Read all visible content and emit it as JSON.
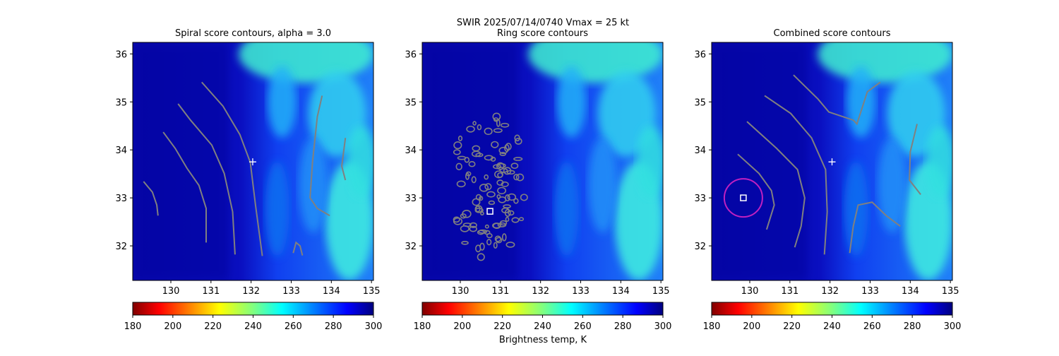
{
  "figure": {
    "suptitle_line1": "SWIR  2025/07/14/0740    Vmax = 25 kt",
    "colorbar_label": "Brightness temp, K"
  },
  "chart_data": [
    {
      "type": "contour",
      "title": "Spiral score contours, alpha =  3.0",
      "xlim": [
        129.05,
        135.05
      ],
      "ylim": [
        31.28,
        36.24
      ],
      "xticks": [
        130,
        131,
        132,
        133,
        134,
        135
      ],
      "yticks": [
        32,
        33,
        34,
        35,
        36
      ],
      "contour_color": "#808080",
      "contours": [
        [
          [
            129.32,
            33.34
          ],
          [
            129.54,
            33.12
          ],
          [
            129.65,
            32.85
          ],
          [
            129.68,
            32.63
          ]
        ],
        [
          [
            129.81,
            34.37
          ],
          [
            130.11,
            34.03
          ],
          [
            130.4,
            33.62
          ],
          [
            130.7,
            33.26
          ],
          [
            130.88,
            32.78
          ],
          [
            130.88,
            32.07
          ]
        ],
        [
          [
            130.18,
            34.96
          ],
          [
            130.49,
            34.62
          ],
          [
            131.02,
            34.1
          ],
          [
            131.33,
            33.51
          ],
          [
            131.54,
            32.71
          ],
          [
            131.6,
            31.82
          ]
        ],
        [
          [
            130.77,
            35.41
          ],
          [
            131.3,
            34.91
          ],
          [
            131.72,
            34.32
          ],
          [
            131.98,
            33.74
          ],
          [
            132.11,
            32.85
          ],
          [
            132.28,
            31.79
          ]
        ],
        [
          [
            133.77,
            35.13
          ],
          [
            133.65,
            34.69
          ],
          [
            133.53,
            33.74
          ],
          [
            133.47,
            33.0
          ],
          [
            133.65,
            32.78
          ],
          [
            133.96,
            32.63
          ]
        ],
        [
          [
            134.35,
            34.25
          ],
          [
            134.26,
            33.66
          ],
          [
            134.35,
            33.37
          ]
        ],
        [
          [
            133.05,
            31.85
          ],
          [
            133.12,
            32.07
          ],
          [
            133.22,
            32.0
          ],
          [
            133.28,
            31.8
          ]
        ]
      ],
      "plus_marker": [
        132.04,
        33.75
      ],
      "colorbar": {
        "min": 180,
        "max": 300,
        "ticks": [
          180,
          200,
          220,
          240,
          260,
          280,
          300
        ],
        "colormap": "jet_r"
      }
    },
    {
      "type": "contour",
      "title": "Ring score contours",
      "xlim": [
        129.05,
        135.05
      ],
      "ylim": [
        31.28,
        36.24
      ],
      "xticks": [
        130,
        131,
        132,
        133,
        134,
        135
      ],
      "yticks": [
        32,
        33,
        34,
        35,
        36
      ],
      "contour_color": "#808080",
      "ring_region": {
        "lon": [
          129.8,
          131.6
        ],
        "lat": [
          31.7,
          34.8
        ]
      },
      "square_marker": [
        130.74,
        32.72
      ],
      "colorbar": {
        "min": 180,
        "max": 300,
        "ticks": [
          180,
          200,
          220,
          240,
          260,
          280,
          300
        ],
        "colormap": "jet_r"
      }
    },
    {
      "type": "contour",
      "title": "Combined score contours",
      "xlim": [
        129.05,
        135.05
      ],
      "ylim": [
        31.28,
        36.24
      ],
      "xticks": [
        130,
        131,
        132,
        133,
        134,
        135
      ],
      "yticks": [
        32,
        33,
        34,
        35,
        36
      ],
      "contour_color": "#808080",
      "contours": [
        [
          [
            129.7,
            33.91
          ],
          [
            130.23,
            33.51
          ],
          [
            130.54,
            33.15
          ],
          [
            130.61,
            32.85
          ],
          [
            130.42,
            32.34
          ]
        ],
        [
          [
            129.93,
            34.59
          ],
          [
            130.67,
            34.03
          ],
          [
            131.19,
            33.59
          ],
          [
            131.37,
            33.0
          ],
          [
            131.28,
            32.41
          ],
          [
            131.12,
            31.97
          ]
        ],
        [
          [
            130.37,
            35.13
          ],
          [
            131.02,
            34.76
          ],
          [
            131.54,
            34.25
          ],
          [
            131.89,
            33.59
          ],
          [
            131.93,
            32.71
          ],
          [
            131.86,
            31.82
          ]
        ],
        [
          [
            131.09,
            35.56
          ],
          [
            131.7,
            35.06
          ],
          [
            131.97,
            34.79
          ],
          [
            132.58,
            34.62
          ],
          [
            132.67,
            34.54
          ],
          [
            132.93,
            35.21
          ],
          [
            133.25,
            35.41
          ]
        ],
        [
          [
            134.17,
            34.54
          ],
          [
            134.0,
            33.96
          ],
          [
            133.98,
            33.37
          ],
          [
            134.26,
            33.07
          ]
        ],
        [
          [
            132.49,
            31.85
          ],
          [
            132.58,
            32.41
          ],
          [
            132.7,
            32.85
          ],
          [
            133.05,
            32.91
          ],
          [
            133.4,
            32.63
          ],
          [
            133.75,
            32.41
          ]
        ]
      ],
      "plus_marker": [
        132.05,
        33.75
      ],
      "square_marker": [
        129.84,
        33.0
      ],
      "circle": {
        "center": [
          129.84,
          33.0
        ],
        "color": "#c020c0"
      },
      "colorbar": {
        "min": 180,
        "max": 300,
        "ticks": [
          180,
          200,
          220,
          240,
          260,
          280,
          300
        ],
        "colormap": "jet_r"
      }
    }
  ]
}
